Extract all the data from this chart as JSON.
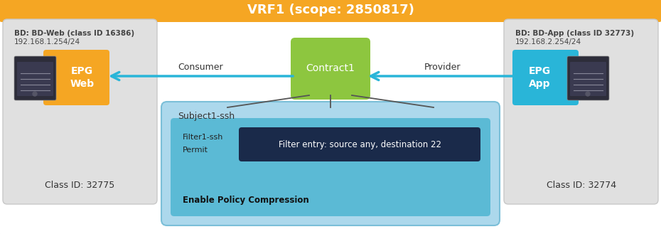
{
  "title": "VRF1 (scope: 2850817)",
  "title_bg": "#F5A623",
  "title_color": "#FFFFFF",
  "outer_bg": "#FFFFFF",
  "left_box_label_line1": "BD: BD-Web (class ID 16386)",
  "left_box_label_line2": "192.168.1.254/24",
  "left_epg_label": "EPG\nWeb",
  "left_epg_color": "#F5A623",
  "left_class_id": "Class ID: 32775",
  "right_box_label_line1": "BD: BD-App (class ID 32773)",
  "right_box_label_line2": "192.168.2.254/24",
  "right_epg_label": "EPG\nApp",
  "right_epg_color": "#29B5D8",
  "right_class_id": "Class ID: 32774",
  "contract_label": "Contract1",
  "contract_bg": "#8DC63F",
  "consumer_label": "Consumer",
  "provider_label": "Provider",
  "arrow_color": "#29B5D8",
  "subject_box_bg": "#ACD8EC",
  "subject_label": "Subject1-ssh",
  "filter_inner_bg": "#5BBAD5",
  "filter_dark_bg": "#1A2A4A",
  "filter_label_line1": "Filter1-ssh",
  "filter_label_line2": "Permit",
  "filter_label_line3": "Enable Policy Compression",
  "filter_entry_label": "Filter entry: source any, destination 22",
  "filter_entry_text_color": "#FFFFFF",
  "gray_box_bg": "#E0E0E0",
  "gray_box_edge": "#C8C8C8"
}
